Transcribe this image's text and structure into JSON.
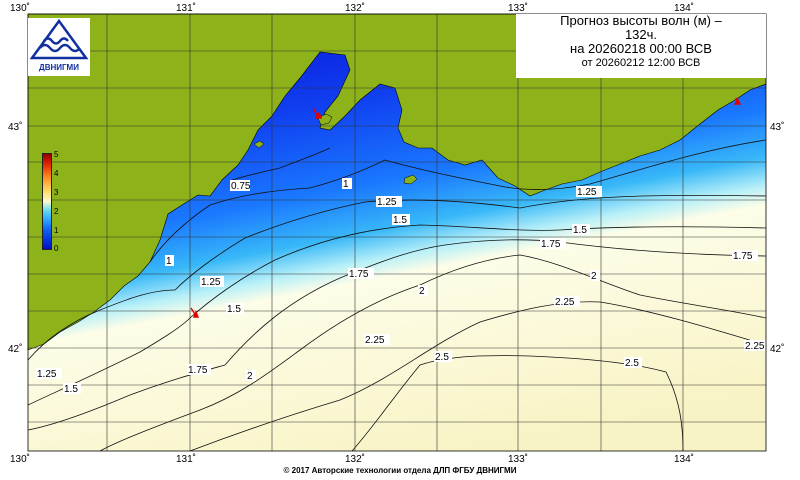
{
  "header": {
    "title_line1": "Прогноз высоты волн (м) –",
    "title_line2": "132ч.",
    "title_line3": "на 20260218 00:00 ВСВ",
    "title_line4": "от 20260212 12:00 ВСВ"
  },
  "logo": {
    "text": "ДВНИГМИ",
    "icon": "wave-logo-icon"
  },
  "footer": {
    "copyright": "© 2017 Авторские технологии отдела ДЛП ФГБУ ДВНИГМИ"
  },
  "axes": {
    "lon_top": [
      "130˚",
      "131˚",
      "132˚",
      "133˚",
      "134˚"
    ],
    "lon_bottom": [
      "130˚",
      "131˚",
      "132˚",
      "133˚",
      "134˚"
    ],
    "lat_left": [
      "43˚",
      "42˚"
    ],
    "lat_right": [
      "43˚",
      "42˚"
    ]
  },
  "colorbar": {
    "labels": [
      "5",
      "4",
      "3",
      "2",
      "1",
      "0"
    ],
    "colors": [
      "#900000",
      "#e02000",
      "#ff9020",
      "#ffe070",
      "#fdfad0",
      "#60d8f0",
      "#2aa0ff",
      "#1060f0",
      "#0010c8"
    ]
  },
  "contour_labels": [
    "0.75",
    "1",
    "1.25",
    "1.5",
    "1.75",
    "2",
    "2.25",
    "2.5"
  ],
  "colors": {
    "land": "#8db21a",
    "grid": "#333333",
    "low_wave": "#0a14d8",
    "high_wave": "#fbf9d8"
  },
  "markers": {
    "icon": "red-arrow-icon"
  }
}
